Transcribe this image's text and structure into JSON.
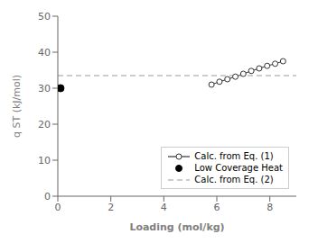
{
  "chart_data": {
    "type": "line",
    "title": "",
    "xlabel": "Loading (mol/kg)",
    "ylabel": "q ST (kJ/mol)",
    "xlim": [
      0,
      9
    ],
    "ylim": [
      0,
      50
    ],
    "xticks": [
      0,
      2,
      4,
      6,
      8
    ],
    "yticks": [
      0,
      10,
      20,
      30,
      40,
      50
    ],
    "grid": false,
    "legend": "lower right",
    "series": [
      {
        "name": "Calc. from Eq. (1)",
        "type": "line",
        "marker": "open_circle",
        "line_style": "solid",
        "color": "#333333",
        "x": [
          5.8,
          6.1,
          6.4,
          6.7,
          7.0,
          7.3,
          7.6,
          7.9,
          8.2,
          8.5
        ],
        "values": [
          31.0,
          31.8,
          32.5,
          33.2,
          34.0,
          34.8,
          35.5,
          36.2,
          36.8,
          37.5
        ]
      },
      {
        "name": "Low Coverage Heat",
        "type": "scatter",
        "marker": "circle",
        "line_style": "none",
        "color": "#000000",
        "x": [
          0.1
        ],
        "values": [
          30.0
        ]
      },
      {
        "name": "Calc. from Eq. (2)",
        "type": "hline",
        "marker": "none",
        "line_style": "dashed",
        "color": "#999999",
        "values": [
          33.5
        ]
      }
    ]
  }
}
